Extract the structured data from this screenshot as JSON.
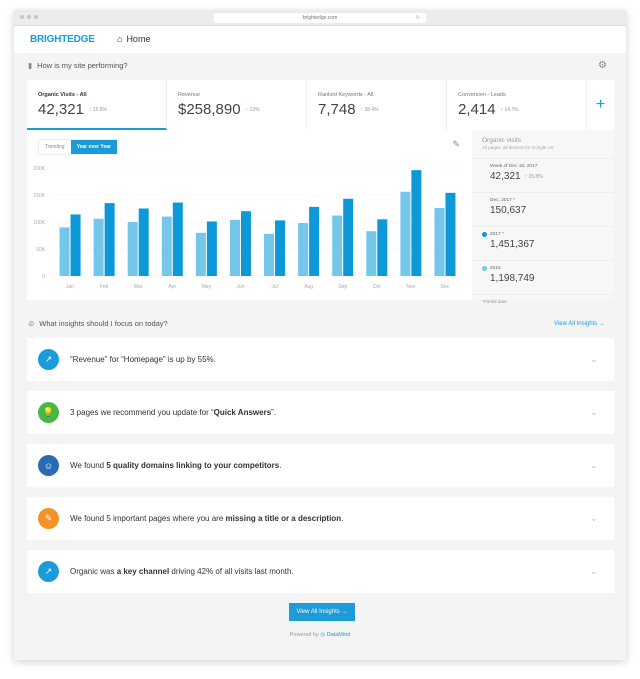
{
  "browser": {
    "url": "brightedge.com"
  },
  "header": {
    "logo": "BRIGHTEDGE",
    "home": "Home"
  },
  "performance": {
    "title": "How is my site performing?"
  },
  "metrics": [
    {
      "label": "Organic Visits - All",
      "value": "42,321",
      "change": "15.8%"
    },
    {
      "label": "Revenue",
      "value": "$258,890",
      "change": "13%"
    },
    {
      "label": "Ranked Keywords - All",
      "value": "7,748",
      "change": "38.4%"
    },
    {
      "label": "Conversion - Leads",
      "value": "2,414",
      "change": "14.7%"
    }
  ],
  "add_label": "+",
  "toggle": {
    "trending": "Trending",
    "yoy": "Year over Year"
  },
  "colors": {
    "accent": "#1b9bd7",
    "series_2017": "#0d98d8",
    "series_2016": "#74c6ea"
  },
  "chart_data": {
    "type": "bar",
    "categories": [
      "Jan",
      "Feb",
      "Mar",
      "Apr",
      "May",
      "Jun",
      "Jul",
      "Aug",
      "Sep",
      "Oct",
      "Nov",
      "Dec"
    ],
    "series": [
      {
        "name": "2016",
        "values": [
          90000,
          106000,
          100000,
          110000,
          80000,
          104000,
          78000,
          98000,
          112000,
          83000,
          156000,
          126000
        ]
      },
      {
        "name": "2017",
        "values": [
          114000,
          135000,
          125000,
          136000,
          101000,
          120000,
          103000,
          128000,
          143000,
          105000,
          196000,
          154000
        ]
      }
    ],
    "yticks": [
      "0",
      "50K",
      "100K",
      "150K",
      "200K"
    ],
    "ylim": [
      0,
      200000
    ],
    "grid": true
  },
  "side": {
    "title": "Organic visits",
    "subtitle": "All pages, all devices for Google US",
    "rows": [
      {
        "label": "Week of Dec 18, 2017",
        "value": "42,321",
        "change": "15.8%"
      },
      {
        "label": "Dec, 2017 *",
        "value": "150,637"
      },
      {
        "label": "2017 *",
        "value": "1,451,367"
      },
      {
        "label": "2016",
        "value": "1,198,749"
      }
    ],
    "footnote": "*Partial data"
  },
  "insights": {
    "title": "What insights should I focus on today?",
    "view_all": "View All Insights →",
    "items": [
      {
        "icon": "trend-up-icon",
        "color": "#1b9bd7",
        "segments": [
          {
            "t": "“Revenue” for “Homepage” is up by 55%.",
            "b": false
          }
        ]
      },
      {
        "icon": "lightbulb-icon",
        "color": "#4cb548",
        "segments": [
          {
            "t": "3 pages we recommend you update for “",
            "b": false
          },
          {
            "t": "Quick Answers",
            "b": true
          },
          {
            "t": "”.",
            "b": false
          }
        ]
      },
      {
        "icon": "users-icon",
        "color": "#2a6bb5",
        "segments": [
          {
            "t": "We found ",
            "b": false
          },
          {
            "t": "5 quality domains linking to your competitors",
            "b": true
          },
          {
            "t": ".",
            "b": false
          }
        ]
      },
      {
        "icon": "wrench-icon",
        "color": "#f39325",
        "segments": [
          {
            "t": "We found 5 important pages where you are ",
            "b": false
          },
          {
            "t": "missing a title or a description",
            "b": true
          },
          {
            "t": ".",
            "b": false
          }
        ]
      },
      {
        "icon": "trend-up-icon",
        "color": "#1b9bd7",
        "segments": [
          {
            "t": "Organic was ",
            "b": false
          },
          {
            "t": "a key channel",
            "b": true
          },
          {
            "t": " driving 42% of all visits last month.",
            "b": false
          }
        ]
      }
    ],
    "button": "View All Insights  →"
  },
  "footer": {
    "powered": "Powered by",
    "brand": "DataMind"
  }
}
